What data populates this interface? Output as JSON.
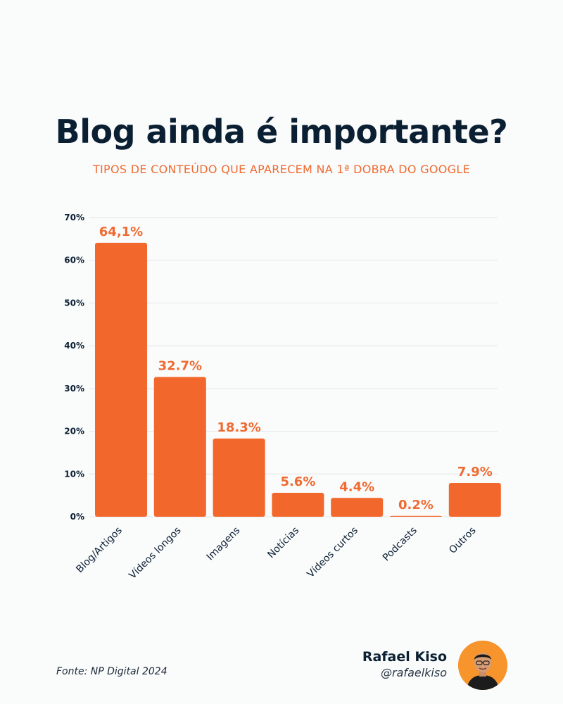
{
  "header": {
    "title": "Blog ainda é importante?",
    "subtitle": "TIPOS DE CONTEÚDO QUE APARECEM NA 1ª DOBRA DO GOOGLE"
  },
  "footer": {
    "source": "Fonte: NP Digital 2024",
    "author_name": "Rafael Kiso",
    "author_handle": "@rafaelkiso"
  },
  "colors": {
    "bar": "#f2672b",
    "label": "#ef6b32",
    "text": "#0b1f33",
    "grid": "#e3e6ea",
    "avatar_bg": "#f7942b"
  },
  "chart_data": {
    "type": "bar",
    "categories": [
      "Blog/Artigos",
      "Vídeos longos",
      "Imagens",
      "Notícias",
      "Vídeos curtos",
      "Podcasts",
      "Outros"
    ],
    "values": [
      64.1,
      32.7,
      18.3,
      5.6,
      4.4,
      0.2,
      7.9
    ],
    "data_labels": [
      "64,1%",
      "32.7%",
      "18.3%",
      "5.6%",
      "4.4%",
      "0.2%",
      "7.9%"
    ],
    "yticks": [
      0,
      10,
      20,
      30,
      40,
      50,
      60,
      70
    ],
    "ytick_labels": [
      "0%",
      "10%",
      "20%",
      "30%",
      "40%",
      "50%",
      "60%",
      "70%"
    ],
    "ylim": [
      0,
      70
    ],
    "grid": true,
    "legend": "none"
  }
}
